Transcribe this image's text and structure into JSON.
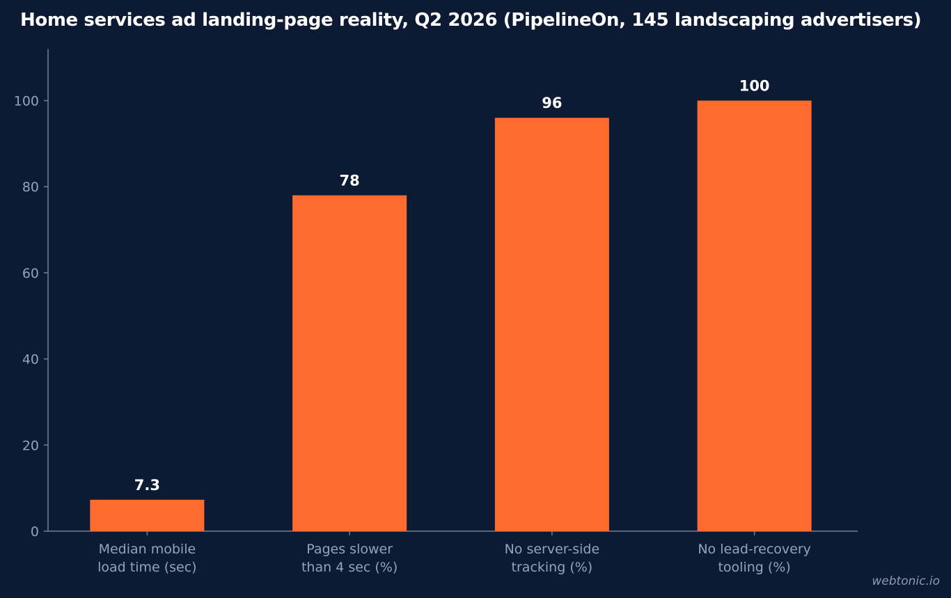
{
  "chart_data": {
    "type": "bar",
    "title": "Home services ad landing-page reality, Q2 2026 (PipelineOn, 145 landscaping advertisers)",
    "categories": [
      [
        "Median mobile",
        "load time (sec)"
      ],
      [
        "Pages slower",
        "than 4 sec (%)"
      ],
      [
        "No server-side",
        "tracking (%)"
      ],
      [
        "No lead-recovery",
        "tooling (%)"
      ]
    ],
    "values": [
      7.3,
      78,
      96,
      100
    ],
    "value_labels": [
      "7.3",
      "78",
      "96",
      "100"
    ],
    "y_ticks": [
      0,
      20,
      40,
      60,
      80,
      100
    ],
    "ylim": [
      0,
      112
    ],
    "xlabel": "",
    "ylabel": "",
    "grid": false,
    "legend": "none",
    "colors": {
      "background": "#0c1b33",
      "bar": "#ff6b2f",
      "axis": "#6f7f99",
      "tick_text": "#95a3ba",
      "value_text": "#ffffff"
    }
  },
  "footer": {
    "credit": "webtonic.io"
  }
}
